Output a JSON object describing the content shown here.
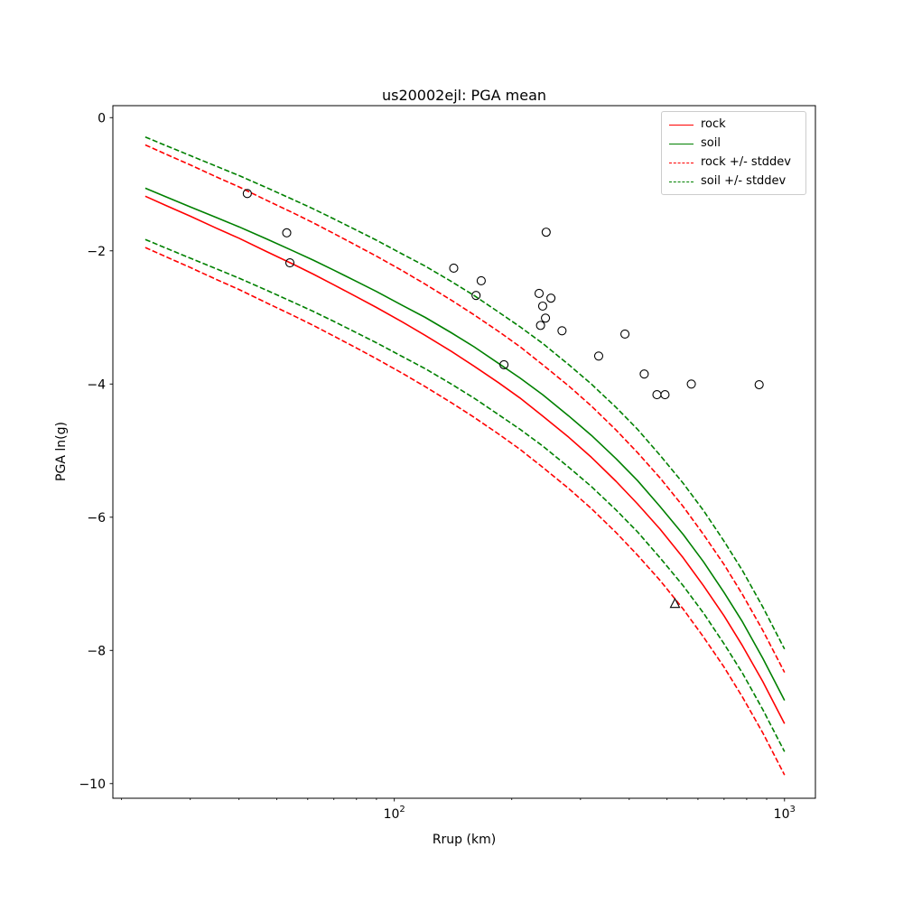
{
  "chart": {
    "title": "us20002ejl: PGA mean",
    "xlabel": "Rrup (km)",
    "ylabel": "PGA ln(g)"
  },
  "legend": {
    "items": [
      {
        "label": "rock",
        "color": "#ff0000",
        "dash": false
      },
      {
        "label": "soil",
        "color": "#008000",
        "dash": false
      },
      {
        "label": "rock +/- stddev",
        "color": "#ff0000",
        "dash": true
      },
      {
        "label": "soil +/- stddev",
        "color": "#008000",
        "dash": true
      }
    ]
  },
  "chart_data": {
    "type": "line",
    "title": "us20002ejl: PGA mean",
    "xlabel": "Rrup (km)",
    "ylabel": "PGA ln(g)",
    "xscale": "log",
    "xlim": [
      19,
      1200
    ],
    "ylim": [
      -10.22,
      0.18
    ],
    "grid": false,
    "legend_position": "upper right",
    "xticks": {
      "values": [
        100,
        1000
      ],
      "labels": [
        "10^2",
        "10^3"
      ]
    },
    "yticks": {
      "values": [
        0,
        -2,
        -4,
        -6,
        -8,
        -10
      ],
      "labels": [
        "0",
        "−2",
        "−4",
        "−6",
        "−8",
        "−10"
      ]
    },
    "stddev": 0.77,
    "R": [
      23,
      26,
      30,
      35,
      40,
      47,
      55,
      62,
      70,
      80,
      90,
      105,
      120,
      140,
      160,
      185,
      210,
      240,
      280,
      320,
      370,
      420,
      480,
      550,
      620,
      700,
      780,
      880,
      1000
    ],
    "series": [
      {
        "name": "rock",
        "color": "#ff0000",
        "style": "solid",
        "values": [
          -1.18,
          -1.32,
          -1.48,
          -1.66,
          -1.81,
          -2.01,
          -2.2,
          -2.35,
          -2.51,
          -2.69,
          -2.85,
          -3.07,
          -3.27,
          -3.51,
          -3.73,
          -3.98,
          -4.21,
          -4.48,
          -4.8,
          -5.1,
          -5.46,
          -5.8,
          -6.18,
          -6.61,
          -7.03,
          -7.48,
          -7.93,
          -8.47,
          -9.1
        ]
      },
      {
        "name": "soil",
        "color": "#008000",
        "style": "solid",
        "values": [
          -1.06,
          -1.19,
          -1.34,
          -1.5,
          -1.64,
          -1.82,
          -2.0,
          -2.14,
          -2.29,
          -2.46,
          -2.61,
          -2.82,
          -3.0,
          -3.23,
          -3.44,
          -3.69,
          -3.91,
          -4.16,
          -4.48,
          -4.77,
          -5.12,
          -5.45,
          -5.84,
          -6.26,
          -6.67,
          -7.13,
          -7.57,
          -8.12,
          -8.75
        ]
      }
    ],
    "scatter": {
      "marker": "circle",
      "color": "#000000",
      "points": [
        [
          42,
          -1.14
        ],
        [
          53,
          -1.73
        ],
        [
          54,
          -2.18
        ],
        [
          142,
          -2.26
        ],
        [
          167,
          -2.45
        ],
        [
          162,
          -2.67
        ],
        [
          191,
          -3.71
        ],
        [
          245,
          -1.72
        ],
        [
          235,
          -2.64
        ],
        [
          252,
          -2.71
        ],
        [
          240,
          -2.83
        ],
        [
          244,
          -3.01
        ],
        [
          237,
          -3.12
        ],
        [
          269,
          -3.2
        ],
        [
          334,
          -3.58
        ],
        [
          390,
          -3.25
        ],
        [
          437,
          -3.85
        ],
        [
          471,
          -4.16
        ],
        [
          494,
          -4.16
        ],
        [
          577,
          -4.0
        ],
        [
          861,
          -4.01
        ]
      ]
    },
    "scatter_triangle": {
      "marker": "triangle",
      "color": "#000000",
      "points": [
        [
          524,
          -7.3
        ]
      ]
    }
  }
}
